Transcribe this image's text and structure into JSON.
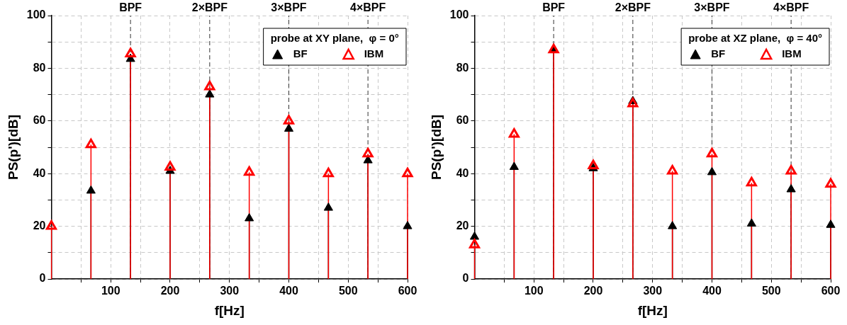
{
  "chart_data": [
    {
      "type": "lollipop",
      "xlabel": "f[Hz]",
      "ylabel": "PS(p')[dB]",
      "legend_title": "probe at XY plane,  φ = 0°",
      "legend": "top right",
      "marker": "triangle",
      "grid": true,
      "x": [
        0,
        66.7,
        133.3,
        200,
        266.7,
        333.3,
        400,
        466.7,
        533.3,
        600
      ],
      "series": [
        {
          "name": "BF",
          "color": "#000000",
          "values": [
            null,
            33.5,
            83.5,
            41,
            70,
            23,
            57,
            27,
            45,
            20
          ]
        },
        {
          "name": "IBM",
          "color": "#ff0000",
          "values": [
            20,
            51,
            85.5,
            42.5,
            73,
            40.5,
            60,
            40,
            47.5,
            40
          ]
        }
      ],
      "xlim": [
        0,
        600
      ],
      "xticks": [
        {
          "value": 50,
          "label": null
        },
        100,
        {
          "value": 150,
          "label": null
        },
        200,
        {
          "value": 250,
          "label": null
        },
        300,
        {
          "value": 350,
          "label": null
        },
        400,
        {
          "value": 450,
          "label": null
        },
        500,
        {
          "value": 550,
          "label": null
        },
        600
      ],
      "ylim": [
        0,
        100
      ],
      "yticks": [
        0,
        {
          "value": 10,
          "label": null
        },
        20,
        {
          "value": 30,
          "label": null
        },
        40,
        {
          "value": 50,
          "label": null
        },
        60,
        {
          "value": 70,
          "label": null
        },
        80,
        {
          "value": 90,
          "label": null
        },
        100
      ],
      "ref_lines": [
        {
          "axis": "x",
          "value": 133.3,
          "label": "BPF",
          "color": "#333333",
          "line_style": "dashed"
        },
        {
          "axis": "x",
          "value": 266.7,
          "label": "2×BPF",
          "color": "#333333",
          "line_style": "dashed"
        },
        {
          "axis": "x",
          "value": 400,
          "label": "3×BPF",
          "color": "#333333",
          "line_style": "dashed"
        },
        {
          "axis": "x",
          "value": 533.3,
          "label": "4×BPF",
          "color": "#333333",
          "line_style": "dashed"
        }
      ]
    },
    {
      "type": "lollipop",
      "xlabel": "f[Hz]",
      "ylabel": "PS(p')[dB]",
      "legend_title": "probe at XZ plane,  φ = 40°",
      "legend": "top right",
      "marker": "triangle",
      "grid": true,
      "x": [
        0,
        66.7,
        133.3,
        200,
        266.7,
        333.3,
        400,
        466.7,
        533.3,
        600
      ],
      "series": [
        {
          "name": "BF",
          "color": "#000000",
          "values": [
            16,
            42.5,
            87,
            42,
            67.5,
            20,
            40.5,
            21,
            34,
            20.5
          ]
        },
        {
          "name": "IBM",
          "color": "#ff0000",
          "values": [
            13,
            55,
            87,
            43,
            66.5,
            41,
            47.5,
            36.5,
            41,
            36
          ]
        }
      ],
      "xlim": [
        0,
        600
      ],
      "xticks": [
        {
          "value": 50,
          "label": null
        },
        100,
        {
          "value": 150,
          "label": null
        },
        200,
        {
          "value": 250,
          "label": null
        },
        300,
        {
          "value": 350,
          "label": null
        },
        400,
        {
          "value": 450,
          "label": null
        },
        500,
        {
          "value": 550,
          "label": null
        },
        600
      ],
      "ylim": [
        0,
        100
      ],
      "yticks": [
        0,
        {
          "value": 10,
          "label": null
        },
        20,
        {
          "value": 30,
          "label": null
        },
        40,
        {
          "value": 50,
          "label": null
        },
        60,
        {
          "value": 70,
          "label": null
        },
        80,
        {
          "value": 90,
          "label": null
        },
        100
      ],
      "ref_lines": [
        {
          "axis": "x",
          "value": 133.3,
          "label": "BPF",
          "color": "#333333",
          "line_style": "dashed"
        },
        {
          "axis": "x",
          "value": 266.7,
          "label": "2×BPF",
          "color": "#333333",
          "line_style": "dashed"
        },
        {
          "axis": "x",
          "value": 400,
          "label": "3×BPF",
          "color": "#333333",
          "line_style": "dashed"
        },
        {
          "axis": "x",
          "value": 533.3,
          "label": "4×BPF",
          "color": "#333333",
          "line_style": "dashed"
        }
      ]
    }
  ]
}
